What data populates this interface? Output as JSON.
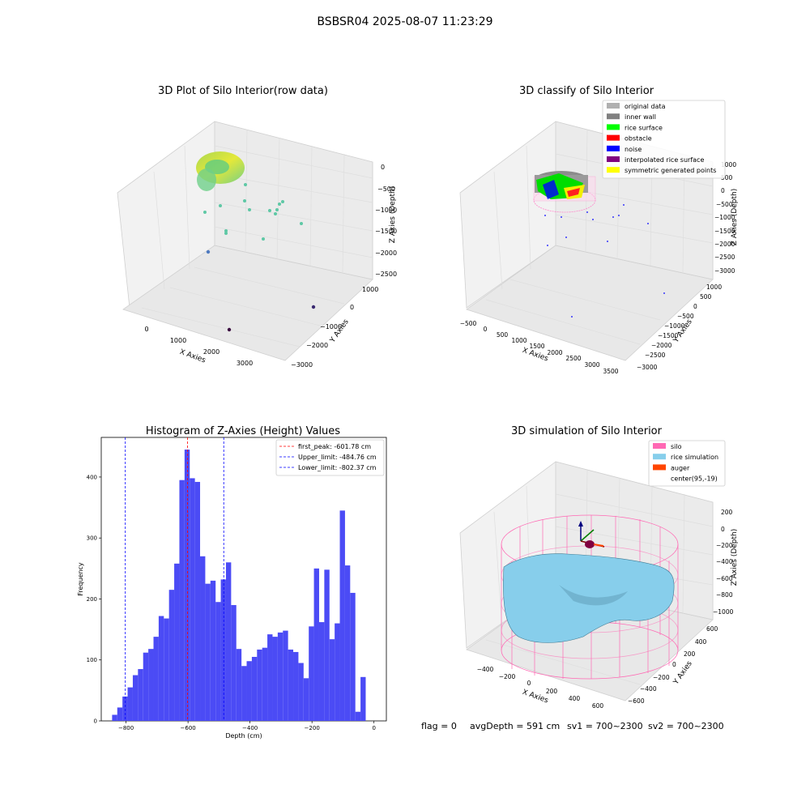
{
  "figure": {
    "suptitle": "BSBSR04 2025-08-07 11:23:29",
    "footer": {
      "flag": "flag = 0",
      "avg_depth": "avgDepth = 591 cm",
      "sv1": "sv1 = 700~2300",
      "sv2": "sv2 = 700~2300"
    }
  },
  "colors": {
    "hist_bar": "#4b4bf5",
    "first_peak": "#ff0000",
    "limits": "#0000ff",
    "silo": "#ff69b4",
    "rice_simulation": "#87ceeb",
    "auger": "#ff4500"
  },
  "panels": {
    "raw": {
      "title": "3D Plot of Silo Interior(row data)",
      "xlabel": "X Axies",
      "ylabel": "Y Axies",
      "zlabel": "Z Axies (Depth)",
      "x_ticks": [
        "0",
        "1000",
        "2000",
        "3000"
      ],
      "y_ticks": [
        "1000",
        "0",
        "−1000",
        "−2000",
        "−3000"
      ],
      "z_ticks": [
        "0",
        "−500",
        "−1000",
        "−1500",
        "−2000",
        "−2500"
      ]
    },
    "classify": {
      "title": "3D classify of Silo Interior",
      "xlabel": "X Axies",
      "ylabel": "Y Axies",
      "zlabel": "Z Axies (Depth)",
      "x_ticks": [
        "−500",
        "0",
        "500",
        "1000",
        "1500",
        "2000",
        "2500",
        "3000",
        "3500"
      ],
      "y_ticks": [
        "1000",
        "500",
        "0",
        "−500",
        "−1000",
        "−1500",
        "−2000",
        "−2500",
        "−3000"
      ],
      "z_ticks": [
        "1000",
        "500",
        "0",
        "−500",
        "−1000",
        "−1500",
        "−2000",
        "−2500",
        "−3000"
      ],
      "legend": [
        {
          "label": "original data",
          "color": "#b0b0b0"
        },
        {
          "label": "inner wall",
          "color": "#808080"
        },
        {
          "label": "rice surface",
          "color": "#00ff00"
        },
        {
          "label": "obstacle",
          "color": "#ff0000"
        },
        {
          "label": "noise",
          "color": "#0000ff"
        },
        {
          "label": "interpolated rice surface",
          "color": "#800080"
        },
        {
          "label": "symmetric generated points",
          "color": "#ffff00"
        }
      ]
    },
    "simulation": {
      "title": "3D simulation of Silo Interior",
      "xlabel": "X Axies",
      "ylabel": "Y Axies",
      "zlabel": "Z Axies (Depth)",
      "x_ticks": [
        "−400",
        "−200",
        "0",
        "200",
        "400",
        "600"
      ],
      "y_ticks": [
        "600",
        "400",
        "200",
        "0",
        "−200",
        "−400",
        "−600"
      ],
      "z_ticks": [
        "200",
        "0",
        "−200",
        "−400",
        "−600",
        "−800",
        "−1000"
      ],
      "legend": [
        {
          "label": "silo",
          "color": "#ff69b4"
        },
        {
          "label": "rice simulation",
          "color": "#87ceeb"
        },
        {
          "label": "auger",
          "color": "#ff4500"
        },
        {
          "label": "center(95,-19)",
          "color": ""
        }
      ]
    }
  },
  "chart_data": {
    "type": "bar",
    "title": "Histogram of Z-Axies (Height) Values",
    "xlabel": "Depth (cm)",
    "ylabel": "Frequency",
    "xlim": [
      -880,
      40
    ],
    "ylim": [
      0,
      465
    ],
    "x_ticks": [
      -800,
      -600,
      -400,
      -200,
      0
    ],
    "x_tick_labels": [
      "−800",
      "−600",
      "−400",
      "−200",
      "0"
    ],
    "y_ticks": [
      0,
      100,
      200,
      300,
      400
    ],
    "bin_width": 16.7,
    "bin_start": -845,
    "values": [
      10,
      22,
      40,
      55,
      75,
      85,
      112,
      118,
      138,
      172,
      168,
      215,
      258,
      395,
      445,
      398,
      392,
      270,
      225,
      230,
      195,
      232,
      260,
      190,
      118,
      90,
      98,
      105,
      117,
      120,
      142,
      138,
      145,
      148,
      117,
      113,
      95,
      70,
      155,
      250,
      162,
      248,
      134,
      160,
      345,
      255,
      210,
      15,
      72
    ],
    "lines": [
      {
        "label": "first_peak: -601.78 cm",
        "x": -601.78,
        "color": "#ff0000",
        "style": "dashed"
      },
      {
        "label": "Upper_limit: -484.76 cm",
        "x": -484.76,
        "color": "#0000ff",
        "style": "dashed"
      },
      {
        "label": "Lower_limit: -802.37 cm",
        "x": -802.37,
        "color": "#0000ff",
        "style": "dashed"
      }
    ],
    "legend_position": "top-right"
  }
}
